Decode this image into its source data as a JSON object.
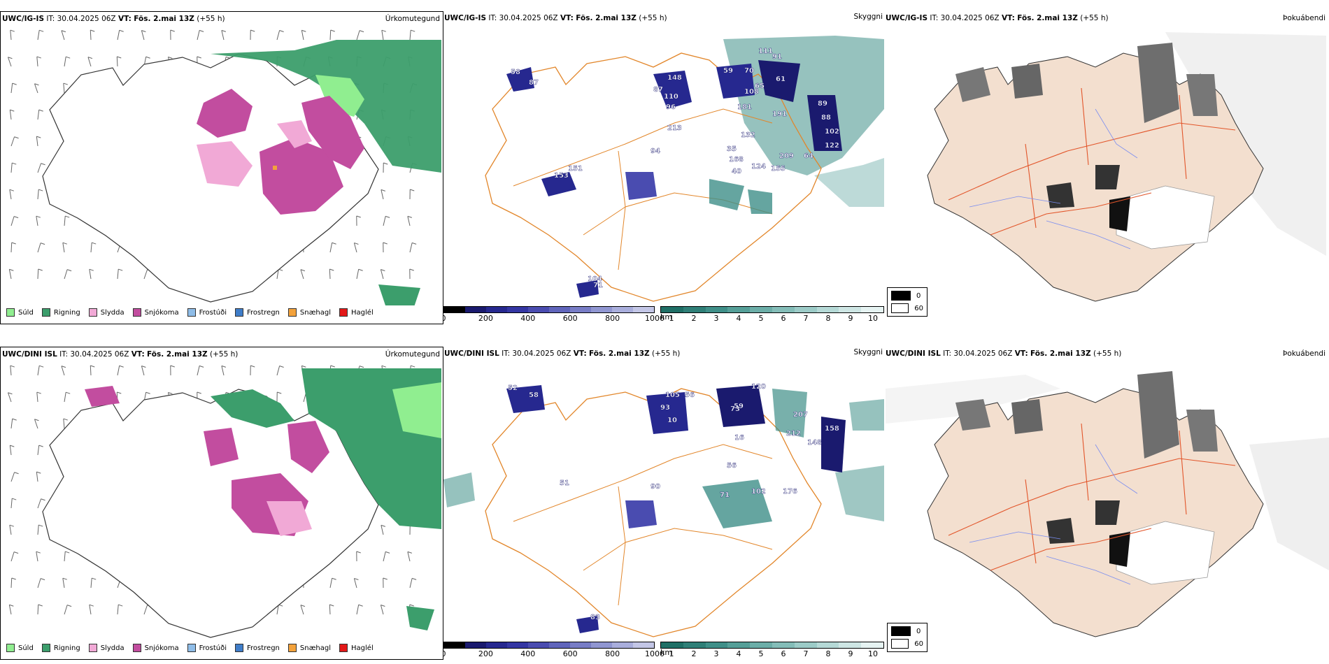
{
  "rows": [
    {
      "model": "UWC/IG-IS",
      "it_label": "IT:",
      "it_value": "30.04.2025 06Z",
      "vt_label": "VT:",
      "vt_value": "Fös. 2.mai 13Z",
      "lead": "(+55 h)",
      "labels": [
        {
          "text": "58"
        },
        {
          "text": "87"
        },
        {
          "text": "148"
        },
        {
          "text": "87"
        },
        {
          "text": "110"
        },
        {
          "text": "96"
        },
        {
          "text": "213"
        },
        {
          "text": "59"
        },
        {
          "text": "70"
        },
        {
          "text": "111"
        },
        {
          "text": "91"
        },
        {
          "text": "61"
        },
        {
          "text": "65"
        },
        {
          "text": "108"
        },
        {
          "text": "181"
        },
        {
          "text": "191"
        },
        {
          "text": "89"
        },
        {
          "text": "88"
        },
        {
          "text": "102"
        },
        {
          "text": "132"
        },
        {
          "text": "35"
        },
        {
          "text": "122"
        },
        {
          "text": "209"
        },
        {
          "text": "64"
        },
        {
          "text": "94"
        },
        {
          "text": "168"
        },
        {
          "text": "124"
        },
        {
          "text": "40"
        },
        {
          "text": "155"
        },
        {
          "text": "151"
        },
        {
          "text": "153"
        },
        {
          "text": "104"
        },
        {
          "text": "71"
        }
      ]
    },
    {
      "model": "UWC/DINI ISL",
      "it_label": "IT:",
      "it_value": "30.04.2025 06Z",
      "vt_label": "VT:",
      "vt_value": "Fös. 2.mai 13Z",
      "lead": "(+55 h)",
      "labels": [
        {
          "text": "52"
        },
        {
          "text": "58"
        },
        {
          "text": "105"
        },
        {
          "text": "56"
        },
        {
          "text": "93"
        },
        {
          "text": "10"
        },
        {
          "text": "73"
        },
        {
          "text": "120"
        },
        {
          "text": "59"
        },
        {
          "text": "207"
        },
        {
          "text": "212"
        },
        {
          "text": "16"
        },
        {
          "text": "56"
        },
        {
          "text": "90"
        },
        {
          "text": "51"
        },
        {
          "text": "71"
        },
        {
          "text": "102"
        },
        {
          "text": "176"
        },
        {
          "text": "148"
        },
        {
          "text": "158"
        },
        {
          "text": "83"
        }
      ]
    }
  ],
  "panel_titles": {
    "precip_type": "Úrkomutegund",
    "cloud": "Skyggni",
    "fog": "Þokuábendi"
  },
  "precip_legend": [
    {
      "label": "Súld",
      "color": "#90ee90"
    },
    {
      "label": "Rigning",
      "color": "#3c9e6c"
    },
    {
      "label": "Slydda",
      "color": "#f1a9d6"
    },
    {
      "label": "Snjókoma",
      "color": "#c24d9f"
    },
    {
      "label": "Frostúði",
      "color": "#8fbde8"
    },
    {
      "label": "Frostregn",
      "color": "#3f7dc9"
    },
    {
      "label": "Snæhagl",
      "color": "#f3a23b"
    },
    {
      "label": "Haglél",
      "color": "#e31818"
    }
  ],
  "cloud_base_bar": {
    "unit": "m",
    "ticks": [
      "0",
      "200",
      "400",
      "600",
      "800",
      "1000"
    ],
    "colors": [
      "#000000",
      "#1a1a6e",
      "#26288f",
      "#3436a3",
      "#4a4cb0",
      "#6065bb",
      "#787dc6",
      "#9096d1",
      "#a9aedc",
      "#c3c6e6"
    ]
  },
  "visibility_bar": {
    "unit": "km",
    "ticks": [
      "1",
      "2",
      "3",
      "4",
      "5",
      "6",
      "7",
      "8",
      "9",
      "10"
    ],
    "colors": [
      "#1f6f66",
      "#2f7f77",
      "#3f8f88",
      "#559f98",
      "#6caea8",
      "#84bdb8",
      "#9ccbc7",
      "#b5d9d6",
      "#cee6e4",
      "#e6f3f2"
    ]
  },
  "fog_legend": [
    {
      "label": "0",
      "color": "#000000"
    },
    {
      "label": "60",
      "color": "#ffffff"
    }
  ]
}
